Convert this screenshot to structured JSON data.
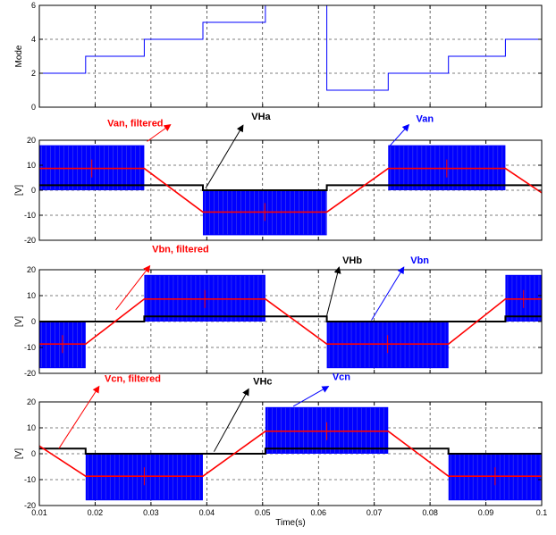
{
  "chart_data": [
    {
      "type": "line",
      "ylabel": "Mode",
      "xlim": [
        0.01,
        0.1
      ],
      "ylim": [
        0,
        6
      ],
      "yticks": [
        0,
        2,
        4,
        6
      ],
      "grid": true,
      "series": [
        {
          "color": "#0000ff",
          "step": true,
          "x": [
            0.01,
            0.0183,
            0.0183,
            0.0288,
            0.0288,
            0.0393,
            0.0393,
            0.0505,
            0.0505,
            0.0615,
            0.0615,
            0.0725,
            0.0725,
            0.0833,
            0.0833,
            0.0935,
            0.0935,
            0.1
          ],
          "y": [
            2,
            2,
            3,
            3,
            4,
            4,
            5,
            5,
            6,
            6,
            1,
            1,
            2,
            2,
            3,
            3,
            4,
            4
          ]
        }
      ]
    },
    {
      "type": "line",
      "ylabel": "[V]",
      "xlim": [
        0.01,
        0.1
      ],
      "ylim": [
        -20,
        20
      ],
      "yticks": [
        -20,
        -10,
        0,
        10,
        20
      ],
      "grid": true,
      "pwm_bands": [
        {
          "x0": 0.01,
          "x1": 0.0288,
          "lo": 0,
          "hi": 18
        },
        {
          "x0": 0.0393,
          "x1": 0.0615,
          "lo": -18,
          "hi": 0
        },
        {
          "x0": 0.0725,
          "x1": 0.0935,
          "lo": 0,
          "hi": 18
        }
      ],
      "series": [
        {
          "name": "Van, filtered",
          "color": "#ff0000",
          "x": [
            0.01,
            0.0288,
            0.0393,
            0.0615,
            0.0725,
            0.0935,
            0.1
          ],
          "y": [
            8.7,
            8.7,
            -8.7,
            -8.7,
            8.7,
            8.7,
            -1
          ]
        },
        {
          "name": "VHa",
          "color": "#000000",
          "step": true,
          "x": [
            0.01,
            0.0393,
            0.0393,
            0.0615,
            0.0615,
            0.1
          ],
          "y": [
            2,
            2,
            0,
            0,
            2,
            2
          ]
        }
      ],
      "annotations": [
        {
          "text": "Van, filtered",
          "color": "#ff0000",
          "label_at": [
            0.0222,
            25.5
          ],
          "arrow_from": [
            0.0293,
            19.5
          ],
          "arrow_to": [
            0.0335,
            26.2
          ]
        },
        {
          "text": "VHa",
          "color": "#000000",
          "label_at": [
            0.048,
            28.3
          ],
          "arrow_from": [
            0.0398,
            0.8
          ],
          "arrow_to": [
            0.0465,
            26
          ]
        },
        {
          "text": "Van",
          "color": "#0000ff",
          "label_at": [
            0.0775,
            27.3
          ],
          "arrow_from": [
            0.0728,
            17.8
          ],
          "arrow_to": [
            0.0762,
            26.2
          ]
        }
      ]
    },
    {
      "type": "line",
      "ylabel": "[V]",
      "xlim": [
        0.01,
        0.1
      ],
      "ylim": [
        -20,
        20
      ],
      "yticks": [
        -20,
        -10,
        0,
        10,
        20
      ],
      "grid": true,
      "pwm_bands": [
        {
          "x0": 0.01,
          "x1": 0.0183,
          "lo": -18,
          "hi": 0
        },
        {
          "x0": 0.0288,
          "x1": 0.0505,
          "lo": 0,
          "hi": 18
        },
        {
          "x0": 0.0615,
          "x1": 0.0833,
          "lo": -18,
          "hi": 0
        },
        {
          "x0": 0.0935,
          "x1": 0.1,
          "lo": 0,
          "hi": 18
        }
      ],
      "series": [
        {
          "name": "Vbn, filtered",
          "color": "#ff0000",
          "x": [
            0.01,
            0.0183,
            0.0288,
            0.0505,
            0.0615,
            0.0833,
            0.0935,
            0.1
          ],
          "y": [
            -8.7,
            -8.7,
            8.7,
            8.7,
            -8.7,
            -8.7,
            8.7,
            8.7
          ]
        },
        {
          "name": "VHb",
          "color": "#000000",
          "step": true,
          "x": [
            0.01,
            0.0288,
            0.0288,
            0.0615,
            0.0615,
            0.0935,
            0.0935,
            0.1
          ],
          "y": [
            0,
            0,
            2,
            2,
            0,
            0,
            2,
            2
          ]
        }
      ],
      "annotations": [
        {
          "text": "Vbn, filtered",
          "color": "#ff0000",
          "label_at": [
            0.0302,
            26.7
          ],
          "arrow_from": [
            0.0237,
            4.5
          ],
          "arrow_to": [
            0.0298,
            21.5
          ]
        },
        {
          "text": "VHb",
          "color": "#000000",
          "label_at": [
            0.0643,
            22.5
          ],
          "arrow_from": [
            0.0615,
            2.3
          ],
          "arrow_to": [
            0.0637,
            21
          ]
        },
        {
          "text": "Vbn",
          "color": "#0000ff",
          "label_at": [
            0.0765,
            22.5
          ],
          "arrow_from": [
            0.0695,
            0.5
          ],
          "arrow_to": [
            0.0753,
            21
          ]
        }
      ]
    },
    {
      "type": "line",
      "ylabel": "[V]",
      "xlabel": "Time(s)",
      "xlim": [
        0.01,
        0.1
      ],
      "ylim": [
        -20,
        20
      ],
      "xticks": [
        0.01,
        0.02,
        0.03,
        0.04,
        0.05,
        0.06,
        0.07,
        0.08,
        0.09,
        0.1
      ],
      "yticks": [
        -20,
        -10,
        0,
        10,
        20
      ],
      "grid": true,
      "pwm_bands": [
        {
          "x0": 0.0183,
          "x1": 0.0393,
          "lo": -18,
          "hi": 0
        },
        {
          "x0": 0.0505,
          "x1": 0.0725,
          "lo": 0,
          "hi": 18
        },
        {
          "x0": 0.0833,
          "x1": 0.1,
          "lo": -18,
          "hi": 0
        }
      ],
      "series": [
        {
          "name": "Vcn, filtered",
          "color": "#ff0000",
          "x": [
            0.01,
            0.0183,
            0.0393,
            0.0505,
            0.0725,
            0.0833,
            0.1
          ],
          "y": [
            3,
            -8.7,
            -8.7,
            8.7,
            8.7,
            -8.7,
            -8.7
          ]
        },
        {
          "name": "VHc",
          "color": "#000000",
          "step": true,
          "x": [
            0.01,
            0.0183,
            0.0183,
            0.0505,
            0.0505,
            0.0833,
            0.0833,
            0.1
          ],
          "y": [
            2,
            2,
            0,
            0,
            2,
            2,
            0,
            0
          ]
        }
      ],
      "annotations": [
        {
          "text": "Vcn, filtered",
          "color": "#ff0000",
          "label_at": [
            0.0217,
            27.7
          ],
          "arrow_from": [
            0.0135,
            2
          ],
          "arrow_to": [
            0.0207,
            26
          ]
        },
        {
          "text": "VHc",
          "color": "#000000",
          "label_at": [
            0.0483,
            26.7
          ],
          "arrow_from": [
            0.0413,
            0.8
          ],
          "arrow_to": [
            0.0475,
            25
          ]
        },
        {
          "text": "Vcn",
          "color": "#0000ff",
          "label_at": [
            0.0625,
            28.5
          ],
          "arrow_from": [
            0.0555,
            18.3
          ],
          "arrow_to": [
            0.0618,
            26
          ]
        }
      ]
    }
  ]
}
